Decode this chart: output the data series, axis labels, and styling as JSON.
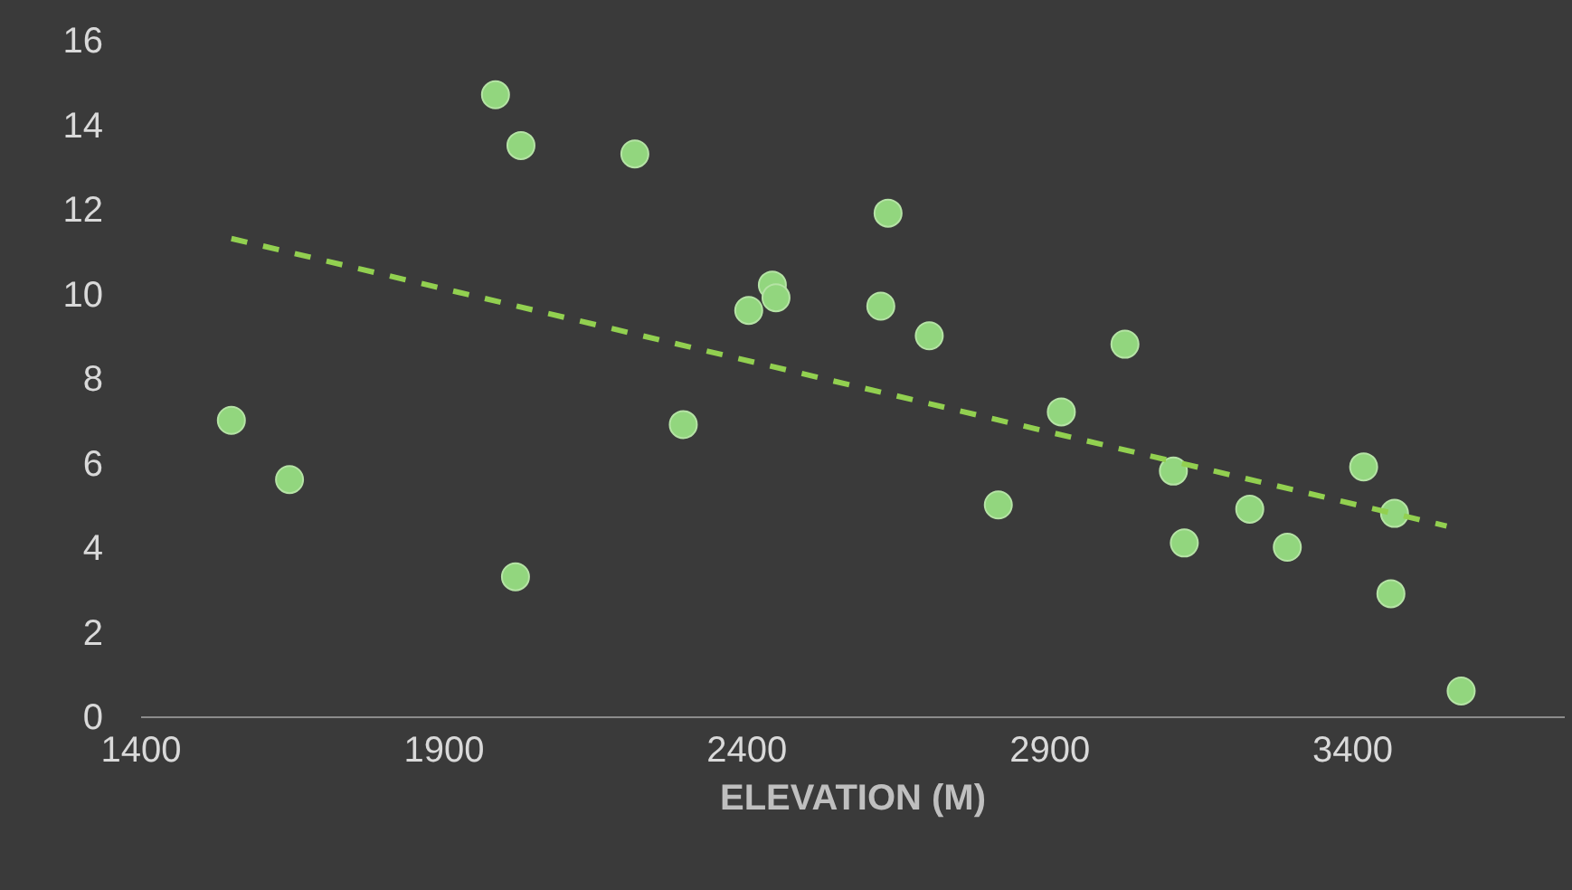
{
  "chart_data": {
    "type": "scatter",
    "xlabel": "ELEVATION (M)",
    "xlim": [
      1400,
      3750
    ],
    "xticks": [
      1400,
      1900,
      2400,
      2900,
      3400
    ],
    "ylim": [
      0,
      16
    ],
    "yticks": [
      0,
      2,
      4,
      6,
      8,
      10,
      12,
      14,
      16
    ],
    "grid": false,
    "marker": "circle",
    "series": [
      {
        "color": "#92d67e",
        "x": [
          1549,
          1645,
          1985,
          2027,
          2018,
          2215,
          2295,
          2403,
          2442,
          2448,
          2621,
          2633,
          2701,
          2815,
          2919,
          3024,
          3104,
          3122,
          3230,
          3292,
          3418,
          3469,
          3463,
          3579
        ],
        "values": [
          7.0,
          5.6,
          14.7,
          13.5,
          3.3,
          13.3,
          6.9,
          9.6,
          10.2,
          9.9,
          9.7,
          11.9,
          9.0,
          5.0,
          7.2,
          8.8,
          5.8,
          4.1,
          4.9,
          4.0,
          5.9,
          4.8,
          2.9,
          0.6
        ]
      },
      {
        "type": "line",
        "color": "#92d050",
        "line_style": "dashed",
        "marker": "none",
        "x": [
          1549,
          3555
        ],
        "values": [
          11.3,
          4.5
        ]
      }
    ]
  }
}
